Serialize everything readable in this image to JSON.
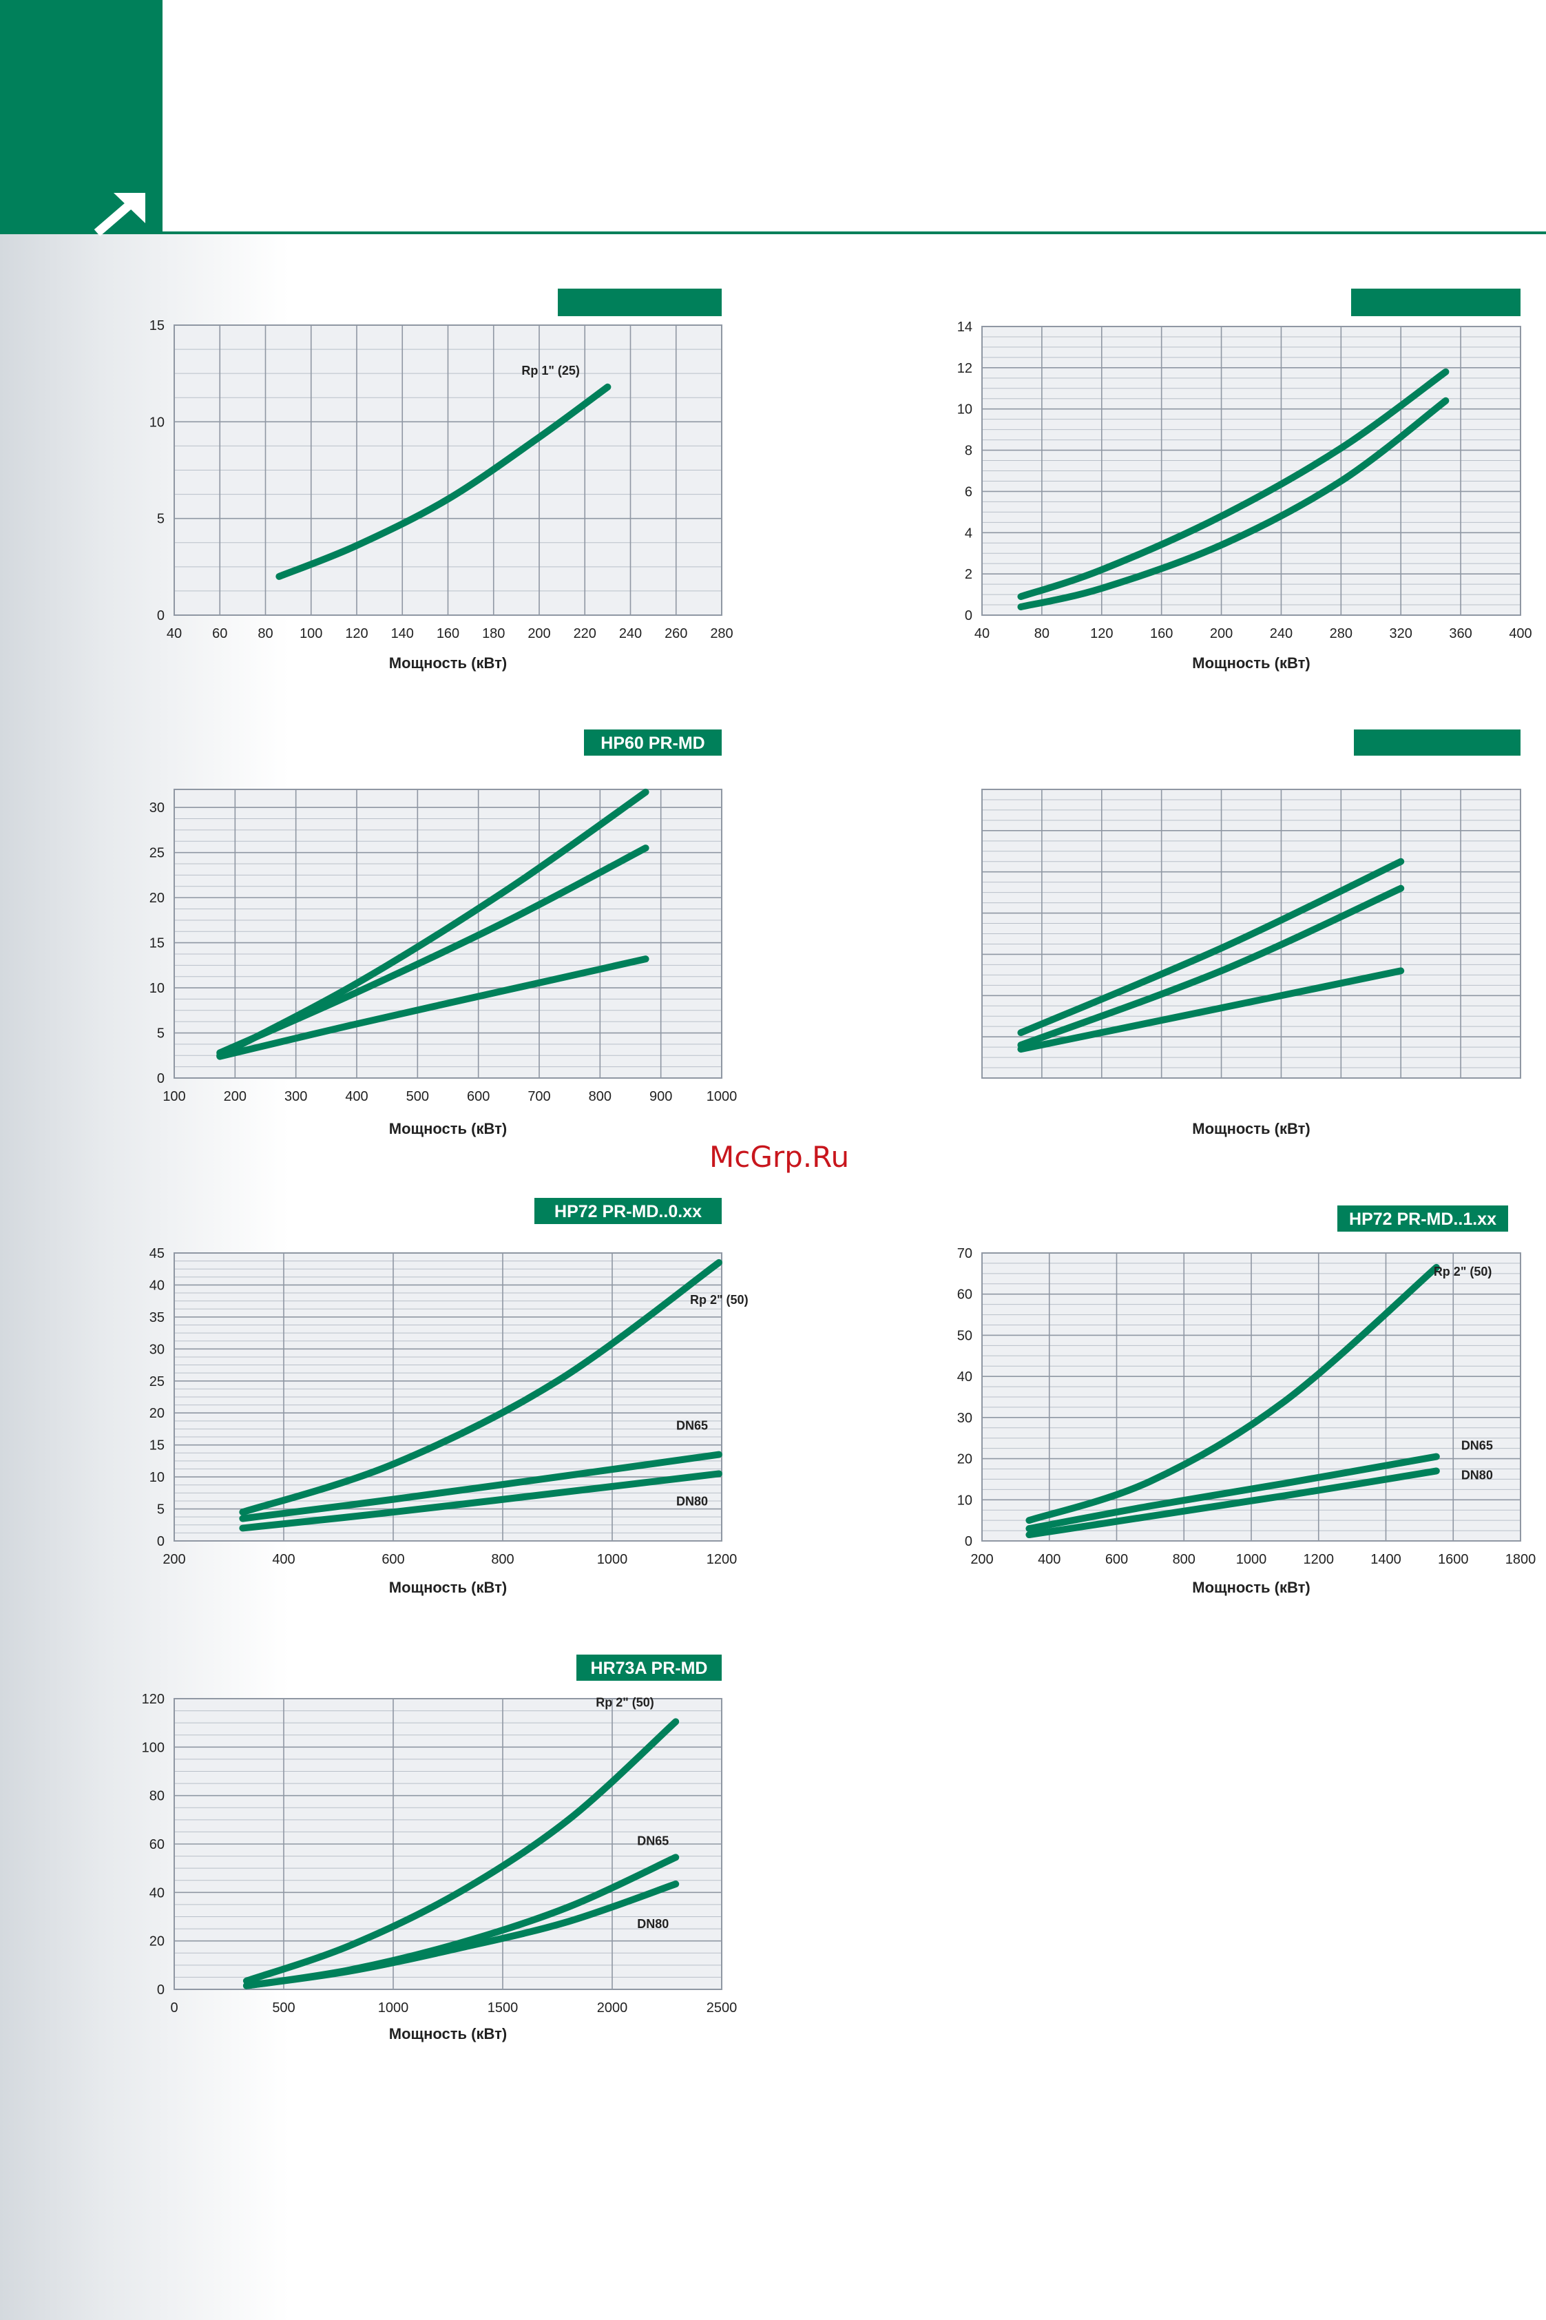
{
  "watermark": "McGrp.Ru",
  "colors": {
    "accent": "#00805a",
    "watermark": "#c8161d"
  },
  "icons": {
    "corner": "arrow-up-right-icon"
  },
  "chart_data": [
    {
      "type": "line",
      "title": "",
      "xlabel": "Мощность  (кВт)",
      "ylabel": "",
      "xlim": [
        40,
        280
      ],
      "ylim": [
        0,
        15
      ],
      "xticks": [
        40,
        60,
        80,
        100,
        120,
        140,
        160,
        180,
        200,
        220,
        240,
        260,
        280
      ],
      "yticks": [
        0,
        5,
        10,
        15
      ],
      "show_tick_labels": true,
      "grid": true,
      "series": [
        {
          "name": "Rp 1\" (25)",
          "x": [
            86,
            120,
            160,
            200,
            230
          ],
          "y": [
            2.0,
            3.6,
            6.0,
            9.2,
            11.8
          ]
        }
      ]
    },
    {
      "type": "line",
      "title": "",
      "xlabel": "Мощность  (кВт)",
      "ylabel": "",
      "xlim": [
        40,
        400
      ],
      "ylim": [
        0,
        14
      ],
      "xticks": [
        40,
        80,
        120,
        160,
        200,
        240,
        280,
        320,
        360,
        400
      ],
      "yticks": [
        0,
        2,
        4,
        6,
        8,
        10,
        12,
        14
      ],
      "show_tick_labels": true,
      "grid": true,
      "series": [
        {
          "x": [
            66,
            120,
            200,
            280,
            350
          ],
          "y": [
            0.9,
            2.2,
            4.8,
            8.1,
            11.8
          ]
        },
        {
          "x": [
            66,
            120,
            200,
            280,
            350
          ],
          "y": [
            0.4,
            1.3,
            3.4,
            6.5,
            10.4
          ]
        }
      ]
    },
    {
      "type": "line",
      "title": "HP60 PR-MD",
      "xlabel": "Мощность  (кВт)",
      "ylabel": "",
      "xlim": [
        100,
        1000
      ],
      "ylim": [
        0,
        32
      ],
      "xticks": [
        100,
        200,
        300,
        400,
        500,
        600,
        700,
        800,
        900,
        1000
      ],
      "yticks": [
        0,
        5,
        10,
        15,
        20,
        25,
        30
      ],
      "show_tick_labels": true,
      "grid": true,
      "series": [
        {
          "x": [
            175,
            400,
            650,
            875
          ],
          "y": [
            2.5,
            10.5,
            21.0,
            31.7
          ]
        },
        {
          "x": [
            175,
            400,
            650,
            875
          ],
          "y": [
            2.8,
            9.5,
            17.5,
            25.5
          ]
        },
        {
          "x": [
            175,
            400,
            650,
            875
          ],
          "y": [
            2.4,
            6.0,
            9.8,
            13.2
          ]
        }
      ]
    },
    {
      "type": "line",
      "title": "",
      "xlabel": "Мощность  (кВт)",
      "ylabel": "",
      "xlim": [
        40,
        400
      ],
      "ylim": [
        0,
        14
      ],
      "xticks": [
        40,
        80,
        120,
        160,
        200,
        240,
        280,
        320,
        360,
        400
      ],
      "yticks": [
        0,
        2,
        4,
        6,
        8,
        10,
        12,
        14
      ],
      "show_tick_labels": false,
      "grid": true,
      "series": [
        {
          "x": [
            66,
            200,
            320
          ],
          "y": [
            2.2,
            6.3,
            10.5
          ]
        },
        {
          "x": [
            66,
            200,
            320
          ],
          "y": [
            1.6,
            5.2,
            9.2
          ]
        },
        {
          "x": [
            66,
            200,
            320
          ],
          "y": [
            1.4,
            3.4,
            5.2
          ]
        }
      ]
    },
    {
      "type": "line",
      "title": "HP72 PR-MD..0.xx",
      "xlabel": "Мощность  (кВт)",
      "ylabel": "",
      "xlim": [
        200,
        1200
      ],
      "ylim": [
        0,
        45
      ],
      "xticks": [
        200,
        400,
        600,
        800,
        1000,
        1200
      ],
      "yticks": [
        0,
        5,
        10,
        15,
        20,
        25,
        30,
        35,
        40,
        45
      ],
      "show_tick_labels": true,
      "grid": true,
      "series": [
        {
          "name": "Rp 2\" (50)",
          "x": [
            325,
            600,
            900,
            1195
          ],
          "y": [
            4.5,
            12.0,
            25.0,
            43.5
          ]
        },
        {
          "name": "DN65",
          "x": [
            325,
            600,
            900,
            1195
          ],
          "y": [
            3.5,
            6.5,
            10.0,
            13.5
          ]
        },
        {
          "name": "DN80",
          "x": [
            325,
            600,
            900,
            1195
          ],
          "y": [
            2.0,
            4.5,
            7.5,
            10.5
          ]
        }
      ]
    },
    {
      "type": "line",
      "title": "HP72 PR-MD..1.xx",
      "xlabel": "Мощность  (кВт)",
      "ylabel": "",
      "xlim": [
        200,
        1800
      ],
      "ylim": [
        0,
        70
      ],
      "xticks": [
        200,
        400,
        600,
        800,
        1000,
        1200,
        1400,
        1600,
        1800
      ],
      "yticks": [
        0,
        10,
        20,
        30,
        40,
        50,
        60,
        70
      ],
      "show_tick_labels": true,
      "grid": true,
      "series": [
        {
          "name": "Rp 2\" (50)",
          "x": [
            340,
            700,
            1100,
            1550
          ],
          "y": [
            5.0,
            14.5,
            34.0,
            66.5
          ]
        },
        {
          "name": "DN65",
          "x": [
            340,
            700,
            1100,
            1550
          ],
          "y": [
            3.0,
            8.5,
            14.0,
            20.5
          ]
        },
        {
          "name": "DN80",
          "x": [
            340,
            700,
            1100,
            1550
          ],
          "y": [
            1.5,
            6.0,
            11.0,
            17.0
          ]
        }
      ]
    },
    {
      "type": "line",
      "title": "HR73A PR-MD",
      "xlabel": "Мощность  (кВт)",
      "ylabel": "",
      "xlim": [
        0,
        2500
      ],
      "ylim": [
        0,
        120
      ],
      "xticks": [
        0,
        500,
        1000,
        1500,
        2000,
        2500
      ],
      "yticks": [
        0,
        20,
        40,
        60,
        80,
        100,
        120
      ],
      "show_tick_labels": true,
      "grid": true,
      "series": [
        {
          "name": "Rp 2\" (50)",
          "x": [
            330,
            800,
            1300,
            1800,
            2290
          ],
          "y": [
            3.5,
            18.0,
            40.0,
            70.0,
            110.5
          ]
        },
        {
          "name": "DN65",
          "x": [
            330,
            800,
            1300,
            1800,
            2290
          ],
          "y": [
            1.5,
            8.0,
            19.0,
            34.0,
            54.5
          ]
        },
        {
          "name": "DN80",
          "x": [
            330,
            800,
            1300,
            1800,
            2290
          ],
          "y": [
            1.5,
            7.5,
            17.0,
            28.0,
            43.5
          ]
        }
      ]
    }
  ]
}
